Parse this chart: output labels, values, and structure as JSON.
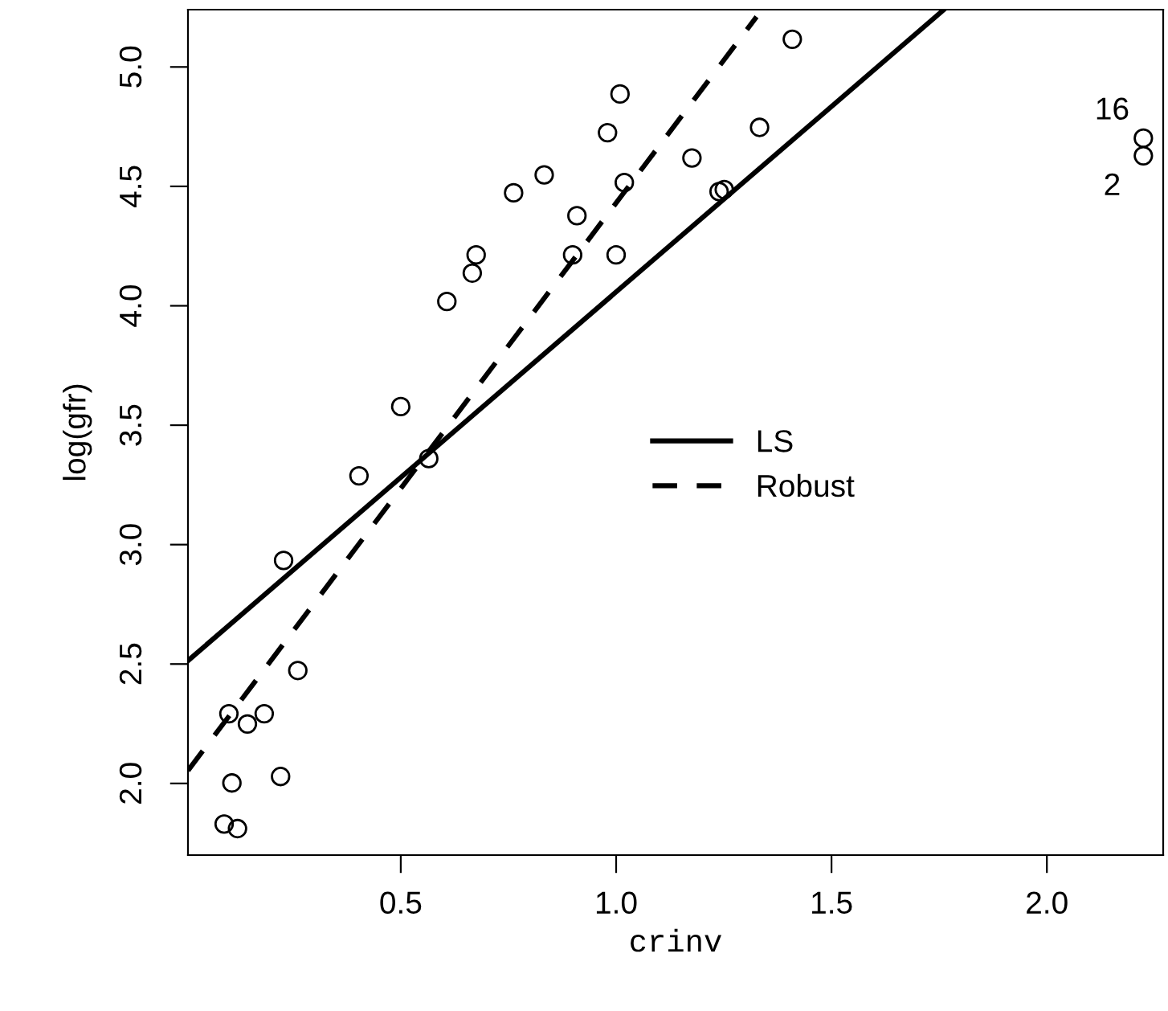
{
  "chart_data": {
    "type": "scatter",
    "xlabel": "crinv",
    "ylabel": "log(gfr)",
    "xlim": [
      0.006,
      2.27
    ],
    "ylim": [
      1.7,
      5.24
    ],
    "xticks": [
      {
        "value": 0.5,
        "label": "0.5"
      },
      {
        "value": 1.0,
        "label": "1.0"
      },
      {
        "value": 1.5,
        "label": "1.5"
      },
      {
        "value": 2.0,
        "label": "2.0"
      }
    ],
    "yticks": [
      {
        "value": 2.0,
        "label": "2.0"
      },
      {
        "value": 2.5,
        "label": "2.5"
      },
      {
        "value": 3.0,
        "label": "3.0"
      },
      {
        "value": 3.5,
        "label": "3.5"
      },
      {
        "value": 4.0,
        "label": "4.0"
      },
      {
        "value": 4.5,
        "label": "4.5"
      },
      {
        "value": 5.0,
        "label": "5.0"
      }
    ],
    "grid": false,
    "legend": "center",
    "series": [
      {
        "marker": "circle",
        "color": "#000000",
        "x": [
          1.009,
          0.98,
          0.833,
          0.762,
          1.019,
          0.909,
          0.675,
          0.666,
          0.899,
          1.0,
          0.607,
          0.5,
          0.565,
          0.403,
          0.228,
          0.261,
          0.101,
          0.183,
          0.144,
          0.108,
          0.221,
          0.09,
          0.121,
          1.409,
          1.333,
          1.176,
          1.239,
          1.251,
          2.224,
          2.224
        ],
        "values": [
          4.887,
          4.725,
          4.548,
          4.473,
          4.516,
          4.377,
          4.213,
          4.137,
          4.213,
          4.213,
          4.018,
          3.578,
          3.36,
          3.288,
          2.934,
          2.473,
          2.292,
          2.292,
          2.249,
          2.002,
          2.029,
          1.83,
          1.811,
          5.116,
          4.747,
          4.619,
          4.478,
          4.487,
          4.702,
          4.628
        ]
      },
      {
        "type": "line",
        "marker": "none",
        "name": "LS",
        "color": "#000000",
        "line_style": "solid",
        "x": [
          0.006,
          1.761
        ],
        "values": [
          2.514,
          5.24
        ]
      },
      {
        "type": "line",
        "marker": "none",
        "name": "Robust",
        "color": "#000000",
        "line_style": "dashed",
        "x": [
          0.006,
          1.326
        ],
        "values": [
          2.054,
          5.21
        ]
      }
    ],
    "annotations": [
      {
        "text": "16",
        "x": 2.224,
        "y": 4.702
      },
      {
        "text": "2",
        "x": 2.224,
        "y": 4.628
      }
    ]
  }
}
